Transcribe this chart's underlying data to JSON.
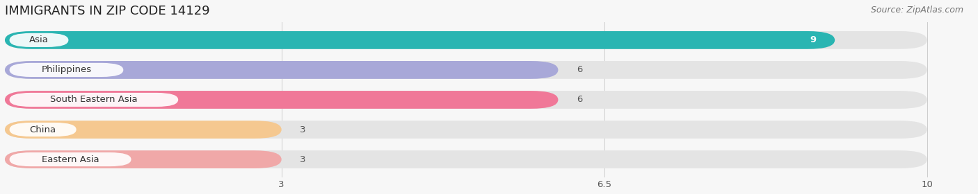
{
  "title": "IMMIGRANTS IN ZIP CODE 14129",
  "source": "Source: ZipAtlas.com",
  "categories": [
    "Asia",
    "Philippines",
    "South Eastern Asia",
    "China",
    "Eastern Asia"
  ],
  "values": [
    9,
    6,
    6,
    3,
    3
  ],
  "bar_colors": [
    "#2ab5b2",
    "#a8a8d8",
    "#f07898",
    "#f5c890",
    "#f0a8a8"
  ],
  "background_color": "#f7f7f7",
  "bar_bg_color": "#e4e4e4",
  "xlim": [
    0,
    10.5
  ],
  "data_max": 10,
  "xticks": [
    3,
    6.5,
    10
  ],
  "title_fontsize": 13,
  "source_fontsize": 9,
  "label_fontsize": 9.5,
  "value_fontsize": 9.5,
  "value_inside_color": "#ffffff",
  "value_outside_color": "#555555",
  "inside_threshold": 9
}
